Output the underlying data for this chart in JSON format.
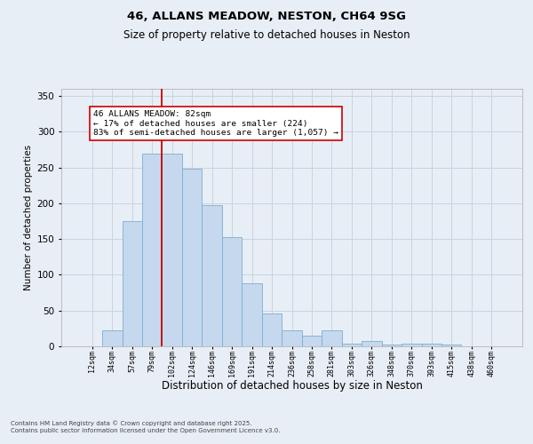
{
  "title1": "46, ALLANS MEADOW, NESTON, CH64 9SG",
  "title2": "Size of property relative to detached houses in Neston",
  "xlabel": "Distribution of detached houses by size in Neston",
  "ylabel": "Number of detached properties",
  "categories": [
    "12sqm",
    "34sqm",
    "57sqm",
    "79sqm",
    "102sqm",
    "124sqm",
    "146sqm",
    "169sqm",
    "191sqm",
    "214sqm",
    "236sqm",
    "258sqm",
    "281sqm",
    "303sqm",
    "326sqm",
    "348sqm",
    "370sqm",
    "393sqm",
    "415sqm",
    "438sqm",
    "460sqm"
  ],
  "values": [
    0,
    22,
    175,
    270,
    270,
    248,
    198,
    153,
    88,
    46,
    22,
    15,
    22,
    4,
    7,
    3,
    4,
    4,
    2,
    0,
    0
  ],
  "bar_color": "#c5d8ed",
  "bar_edge_color": "#7bafd4",
  "vline_index": 3.5,
  "vline_color": "#cc0000",
  "annotation_text": "46 ALLANS MEADOW: 82sqm\n← 17% of detached houses are smaller (224)\n83% of semi-detached houses are larger (1,057) →",
  "annotation_box_color": "#ffffff",
  "annotation_box_edge": "#cc0000",
  "grid_color": "#c8d4e0",
  "background_color": "#e8eef5",
  "footer1": "Contains HM Land Registry data © Crown copyright and database right 2025.",
  "footer2": "Contains public sector information licensed under the Open Government Licence v3.0.",
  "ylim": [
    0,
    360
  ],
  "yticks": [
    0,
    50,
    100,
    150,
    200,
    250,
    300,
    350
  ]
}
